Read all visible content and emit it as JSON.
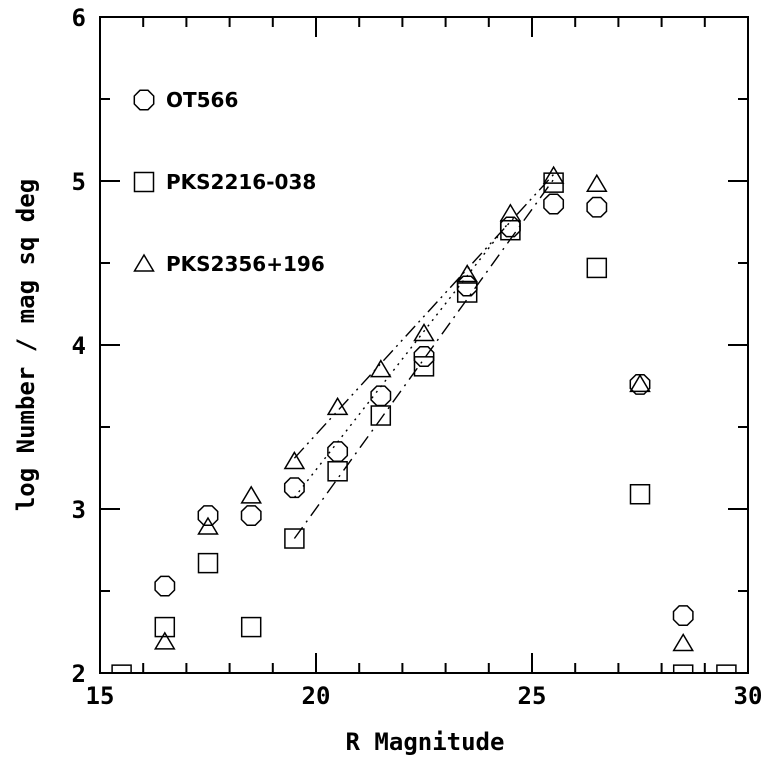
{
  "chart_data": {
    "type": "scatter",
    "title": "",
    "xlabel": "R Magnitude",
    "ylabel": "log Number / mag sq deg",
    "xlim": [
      15,
      30
    ],
    "ylim": [
      2,
      6
    ],
    "x_ticks": [
      "15",
      "20",
      "25",
      "30"
    ],
    "y_ticks": [
      "2",
      "3",
      "4",
      "5",
      "6"
    ],
    "grid": false,
    "legend_position": "top-left",
    "series": [
      {
        "name": "OT566",
        "marker": "octagon",
        "points": [
          [
            16.5,
            2.53
          ],
          [
            17.5,
            2.96
          ],
          [
            18.5,
            2.96
          ],
          [
            19.5,
            3.13
          ],
          [
            20.5,
            3.35
          ],
          [
            21.5,
            3.69
          ],
          [
            22.5,
            3.93
          ],
          [
            23.5,
            4.36
          ],
          [
            24.5,
            4.72
          ],
          [
            25.5,
            4.86
          ],
          [
            26.5,
            4.84
          ],
          [
            27.5,
            3.76
          ],
          [
            28.5,
            2.35
          ]
        ],
        "fit": [
          [
            19.5,
            3.07
          ],
          [
            24.5,
            4.76
          ]
        ],
        "fit_style": "dotted"
      },
      {
        "name": "PKS2216-038",
        "marker": "square",
        "points": [
          [
            15.5,
            1.99
          ],
          [
            16.5,
            2.28
          ],
          [
            17.5,
            2.67
          ],
          [
            18.5,
            2.28
          ],
          [
            19.5,
            2.82
          ],
          [
            20.5,
            3.23
          ],
          [
            21.5,
            3.57
          ],
          [
            22.5,
            3.87
          ],
          [
            23.5,
            4.32
          ],
          [
            24.5,
            4.7
          ],
          [
            25.5,
            4.99
          ],
          [
            26.5,
            4.47
          ],
          [
            27.5,
            3.09
          ],
          [
            28.5,
            1.99
          ],
          [
            29.5,
            1.99
          ]
        ],
        "fit": [
          [
            19.5,
            2.82
          ],
          [
            25.5,
            5.01
          ]
        ],
        "fit_style": "dash-dot"
      },
      {
        "name": "PKS2356+196",
        "marker": "triangle",
        "points": [
          [
            16.5,
            2.19
          ],
          [
            17.5,
            2.89
          ],
          [
            18.5,
            3.08
          ],
          [
            19.5,
            3.29
          ],
          [
            20.5,
            3.62
          ],
          [
            21.5,
            3.85
          ],
          [
            22.5,
            4.07
          ],
          [
            23.5,
            4.43
          ],
          [
            24.5,
            4.8
          ],
          [
            25.5,
            5.03
          ],
          [
            26.5,
            4.98
          ],
          [
            27.5,
            3.76
          ],
          [
            28.5,
            2.18
          ]
        ],
        "fit": [
          [
            19.5,
            3.31
          ],
          [
            25.5,
            5.04
          ]
        ],
        "fit_style": "dash-dot-dot"
      }
    ]
  }
}
